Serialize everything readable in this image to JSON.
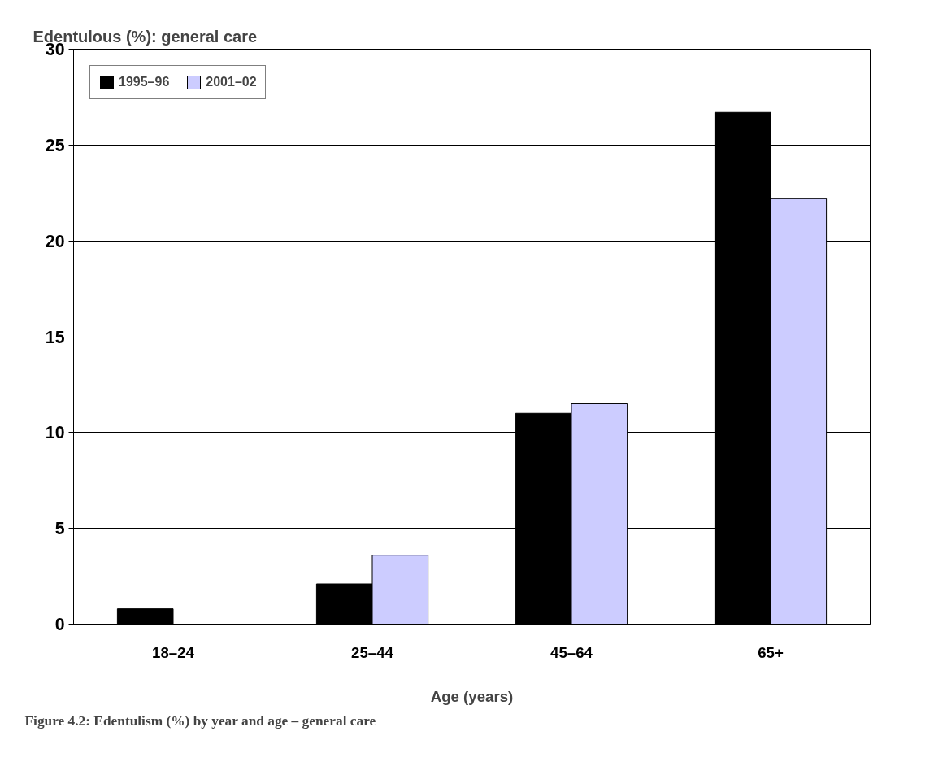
{
  "chart_data": {
    "type": "bar",
    "ylabel": "Edentulous (%): general care",
    "xlabel": "Age (years)",
    "categories": [
      "18–24",
      "25–44",
      "45–64",
      "65+"
    ],
    "series": [
      {
        "name": "1995–96",
        "color": "#000000",
        "values": [
          0.8,
          2.1,
          11.0,
          26.7
        ]
      },
      {
        "name": "2001–02",
        "color": "#ccccff",
        "values": [
          null,
          3.6,
          11.5,
          22.2
        ]
      }
    ],
    "ylim": [
      0,
      30
    ],
    "yticks": [
      0,
      5,
      10,
      15,
      20,
      25,
      30
    ],
    "grid": "y",
    "legend": "top left",
    "annotations": [
      "Figure 4.2: Edentulism (%) by year and age – general care"
    ]
  }
}
